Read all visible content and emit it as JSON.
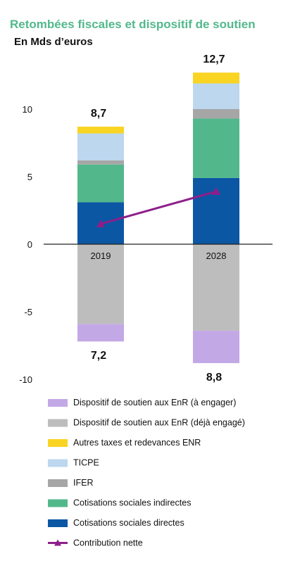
{
  "chart_data": {
    "type": "bar",
    "title": "Retombées fiscales et dispositif de soutien",
    "subtitle": "En Mds d’euros",
    "categories": [
      "2019",
      "2028"
    ],
    "ylim": [
      -10,
      12.7
    ],
    "yticks": [
      10,
      5,
      0,
      -5,
      -10
    ],
    "ytick_labels": [
      "10",
      "5",
      "0",
      "-5",
      "-10"
    ],
    "stacked": true,
    "series": [
      {
        "name": "Cotisations sociales directes",
        "color": "#0b57a4",
        "values": [
          3.1,
          4.9
        ]
      },
      {
        "name": "Cotisations sociales indirectes",
        "color": "#52b88c",
        "values": [
          2.8,
          4.4
        ]
      },
      {
        "name": "IFER",
        "color": "#a6a6a6",
        "values": [
          0.3,
          0.7
        ]
      },
      {
        "name": "TICPE",
        "color": "#bcd7ee",
        "values": [
          2.0,
          1.9
        ]
      },
      {
        "name": "Autres taxes et redevances ENR",
        "color": "#f9d423",
        "values": [
          0.5,
          0.8
        ]
      },
      {
        "name": "Dispositif de soutien aux EnR (déjà engagé)",
        "color": "#bdbdbd",
        "values": [
          -5.9,
          -6.4
        ]
      },
      {
        "name": "Dispositif de soutien aux EnR (à engager)",
        "color": "#c3a8e6",
        "values": [
          -1.3,
          -2.4
        ]
      }
    ],
    "positive_totals": [
      "8,7",
      "12,7"
    ],
    "negative_totals": [
      "7,2",
      "8,8"
    ],
    "line": {
      "name": "Contribution nette",
      "color": "#8e1f8a",
      "values": [
        1.5,
        3.9
      ]
    },
    "legend_placement": "bottom",
    "legend_order": [
      "Dispositif de soutien aux EnR (à engager)",
      "Dispositif de soutien aux EnR (déjà engagé)",
      "Autres taxes et redevances ENR",
      "TICPE",
      "IFER",
      "Cotisations sociales indirectes",
      "Cotisations sociales directes",
      "Contribution nette"
    ]
  },
  "colors": {
    "title": "#52b88c",
    "axis": "#222222"
  }
}
